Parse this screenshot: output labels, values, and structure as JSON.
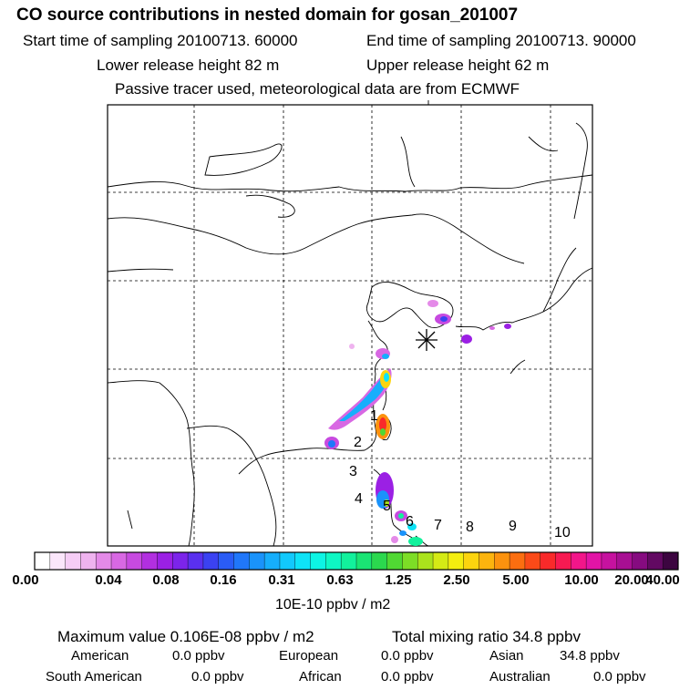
{
  "header": {
    "title": "CO  source contributions in nested domain for gosan_201007",
    "start_label": "Start time of sampling 20100713. 60000",
    "end_label": "End time of sampling 20100713. 90000",
    "lower_release": "Lower release height   82 m",
    "upper_release": "Upper release height   62 m",
    "tracer_note": "Passive tracer used, meteorological data are from ECMWF"
  },
  "chart_data": {
    "type": "heatmap",
    "title": "CO source contributions in nested domain for gosan_201007",
    "grid": true,
    "receptor": "gosan",
    "region_labels": [
      "1",
      "2",
      "3",
      "4",
      "5",
      "6",
      "7",
      "8",
      "9",
      "10"
    ],
    "colorbar": {
      "unit_label": "10E-10 ppbv / m2",
      "ticks": [
        "0.00",
        "0.04",
        "0.08",
        "0.16",
        "0.31",
        "0.63",
        "1.25",
        "2.50",
        "5.00",
        "10.00",
        "20.00",
        "40.00"
      ],
      "colors": [
        "#ffffff",
        "#fbe6fb",
        "#f6cdf6",
        "#efb3ef",
        "#e48ae8",
        "#d868e3",
        "#c74ae0",
        "#b22fe0",
        "#9b20e4",
        "#7c24ea",
        "#5a30ef",
        "#3b42f2",
        "#2a5cf6",
        "#2077fa",
        "#1a93fb",
        "#16aefc",
        "#12c9fc",
        "#0ee3f7",
        "#0df4e4",
        "#0ef7c4",
        "#12f19c",
        "#1ae474",
        "#2bd84e",
        "#50d833",
        "#7ddd26",
        "#aae31c",
        "#d4ea15",
        "#f4ee0f",
        "#fcd40e",
        "#fcb40e",
        "#fc920e",
        "#fc6e10",
        "#fb4a18",
        "#f92a2a",
        "#f71a52",
        "#f2168a",
        "#e214a6",
        "#c6129f",
        "#a80f93",
        "#860b80",
        "#620962",
        "#3c0540"
      ]
    }
  },
  "summary": {
    "max_value": "Maximum value  0.106E-08 ppbv / m2",
    "total_mixing": "Total mixing ratio       34.8 ppbv",
    "american_label": "American",
    "american_value": "0.0 ppbv",
    "european_label": "European",
    "european_value": "0.0 ppbv",
    "asian_label": "Asian",
    "asian_value": "34.8 ppbv",
    "south_american_label": "South American",
    "south_american_value": "0.0 ppbv",
    "african_label": "African",
    "african_value": "0.0 ppbv",
    "australian_label": "Australian",
    "australian_value": "0.0 ppbv"
  }
}
